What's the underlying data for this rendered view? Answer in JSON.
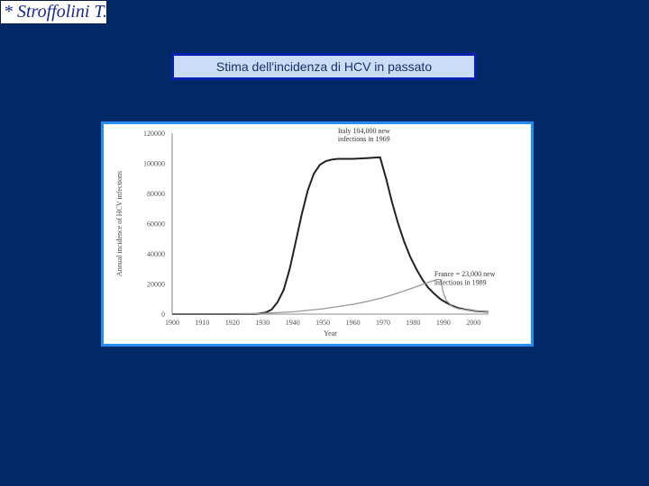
{
  "author_label": "* Stroffolini T.",
  "slide_title": "Stima dell'incidenza di HCV in passato",
  "colors": {
    "background": "#012a66",
    "title_border": "#0b1fb3",
    "chart_border": "#1f8ff0",
    "italy_line": "#222222",
    "france_line": "#999999"
  },
  "chart_data": {
    "type": "line",
    "xlabel": "Year",
    "ylabel": "Annual incidence of HCV infections",
    "xlim": [
      1900,
      2005
    ],
    "ylim": [
      0,
      120000
    ],
    "x_ticks": [
      "1900",
      "1910",
      "1920",
      "1930",
      "1940",
      "1950",
      "1960",
      "1970",
      "1980",
      "1990",
      "2000"
    ],
    "y_ticks": [
      "0",
      "20000",
      "40000",
      "60000",
      "80000",
      "100000",
      "120000"
    ],
    "grid": false,
    "series": [
      {
        "name": "Italy",
        "color": "#222222",
        "x": [
          1900,
          1920,
          1928,
          1931,
          1933,
          1935,
          1937,
          1939,
          1941,
          1943,
          1945,
          1947,
          1949,
          1951,
          1953,
          1955,
          1960,
          1965,
          1969,
          1971,
          1973,
          1975,
          1977,
          1979,
          1981,
          1983,
          1985,
          1987,
          1989,
          1991,
          1993,
          1995,
          1998,
          2001,
          2005
        ],
        "y": [
          0,
          0,
          200,
          1000,
          3000,
          8000,
          16000,
          30000,
          48000,
          66000,
          82000,
          93000,
          99000,
          101500,
          102500,
          103000,
          103000,
          103500,
          104000,
          90000,
          74000,
          60000,
          48000,
          38000,
          30000,
          23000,
          17500,
          13500,
          10000,
          7500,
          5500,
          4000,
          2800,
          2000,
          1500
        ]
      },
      {
        "name": "France",
        "color": "#999999",
        "x": [
          1900,
          1920,
          1930,
          1940,
          1950,
          1960,
          1965,
          1970,
          1975,
          1980,
          1985,
          1988,
          1989,
          1990,
          1991,
          1993,
          1995,
          2000,
          2005
        ],
        "y": [
          0,
          0,
          500,
          1500,
          3500,
          6500,
          8500,
          11000,
          14000,
          17500,
          21000,
          23000,
          23000,
          14000,
          9000,
          5000,
          3500,
          2200,
          1500
        ]
      }
    ],
    "annotations": [
      {
        "text": "Italy 104,000 new",
        "x": 1955,
        "y": 120000
      },
      {
        "text": "infections in 1969",
        "x": 1955,
        "y": 114500
      },
      {
        "text": "France = 23,000 new",
        "x": 1987,
        "y": 25000
      },
      {
        "text": "infections in 1989",
        "x": 1987,
        "y": 19500
      }
    ]
  }
}
